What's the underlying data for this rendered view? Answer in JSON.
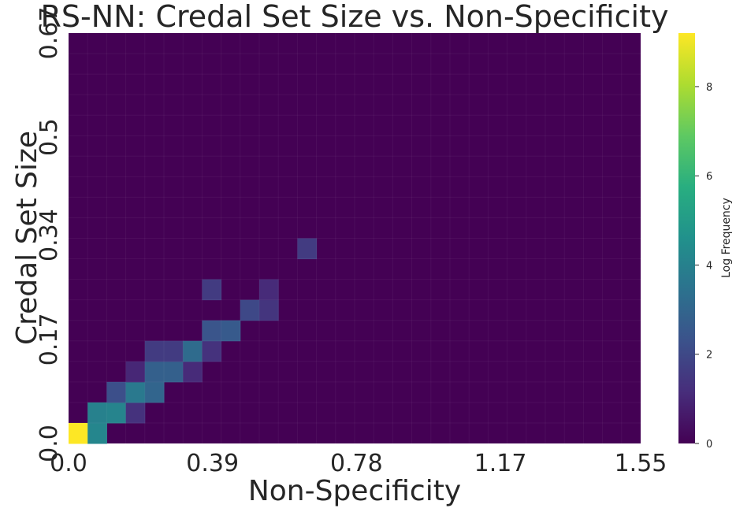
{
  "chart_data": {
    "type": "heatmap",
    "title": "RS-NN: Credal Set Size vs. Non-Specificity",
    "xlabel": "Non-Specificity",
    "ylabel": "Credal Set Size",
    "xlim": [
      0.0,
      1.55
    ],
    "ylim": [
      0.0,
      0.67
    ],
    "x_ticks": [
      0.0,
      0.39,
      0.78,
      1.17,
      1.55
    ],
    "x_tick_labels": [
      "0.0",
      "0.39",
      "0.78",
      "1.17",
      "1.55"
    ],
    "y_ticks": [
      0.0,
      0.17,
      0.34,
      0.5,
      0.67
    ],
    "y_tick_labels": [
      "0.0",
      "0.17",
      "0.34",
      "0.5",
      "0.67"
    ],
    "bins_x": 30,
    "bins_y": 20,
    "colorbar": {
      "label": "Log Frequency",
      "min": 0,
      "max": 9.2,
      "ticks": [
        0,
        2,
        4,
        6,
        8
      ],
      "tick_labels": [
        "0",
        "2",
        "4",
        "6",
        "8"
      ],
      "colormap": "viridis"
    },
    "cells": [
      {
        "ix": 0,
        "iy": 0,
        "value": 9.2
      },
      {
        "ix": 1,
        "iy": 0,
        "value": 4.2
      },
      {
        "ix": 1,
        "iy": 1,
        "value": 4.0
      },
      {
        "ix": 2,
        "iy": 1,
        "value": 4.1
      },
      {
        "ix": 3,
        "iy": 1,
        "value": 1.3
      },
      {
        "ix": 2,
        "iy": 2,
        "value": 2.2
      },
      {
        "ix": 3,
        "iy": 2,
        "value": 3.7
      },
      {
        "ix": 4,
        "iy": 2,
        "value": 3.0
      },
      {
        "ix": 3,
        "iy": 3,
        "value": 1.0
      },
      {
        "ix": 4,
        "iy": 3,
        "value": 2.8
      },
      {
        "ix": 5,
        "iy": 3,
        "value": 2.8
      },
      {
        "ix": 6,
        "iy": 3,
        "value": 1.1
      },
      {
        "ix": 4,
        "iy": 4,
        "value": 1.6
      },
      {
        "ix": 5,
        "iy": 4,
        "value": 1.6
      },
      {
        "ix": 6,
        "iy": 4,
        "value": 3.2
      },
      {
        "ix": 7,
        "iy": 4,
        "value": 1.3
      },
      {
        "ix": 7,
        "iy": 5,
        "value": 2.4
      },
      {
        "ix": 8,
        "iy": 5,
        "value": 2.6
      },
      {
        "ix": 9,
        "iy": 6,
        "value": 2.0
      },
      {
        "ix": 10,
        "iy": 6,
        "value": 1.4
      },
      {
        "ix": 10,
        "iy": 7,
        "value": 1.1
      },
      {
        "ix": 7,
        "iy": 7,
        "value": 1.6
      },
      {
        "ix": 12,
        "iy": 9,
        "value": 1.6
      }
    ]
  }
}
